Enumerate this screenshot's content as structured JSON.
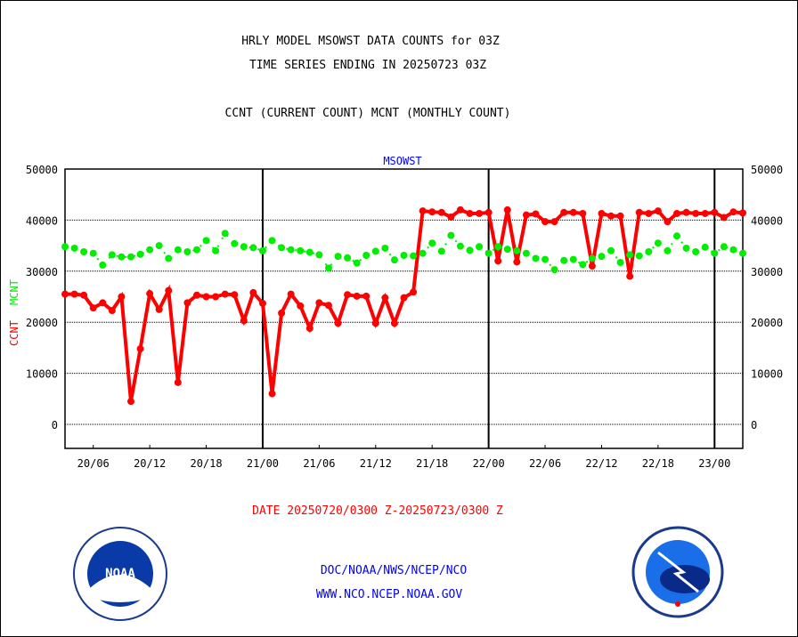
{
  "titles": {
    "line1": "HRLY MODEL MSOWST DATA COUNTS for 03Z",
    "line2": "TIME SERIES ENDING IN 20250723 03Z",
    "line3": "CCNT (CURRENT COUNT) MCNT (MONTHLY COUNT)"
  },
  "footer": {
    "date_range": "DATE 20250720/0300 Z-20250723/0300 Z",
    "org_path": "DOC/NOAA/NWS/NCEP/NCO",
    "website": "WWW.NCO.NCEP.NOAA.GOV"
  },
  "logos": {
    "left": "NOAA",
    "right": "NATIONAL WEATHER SERVICE"
  },
  "colors": {
    "ccnt": "#ff0000",
    "mcnt": "#00ee00",
    "title": "#0000ff"
  },
  "chart_data": {
    "type": "line",
    "title": "MSOWST",
    "xlabel": "DATE 20250720/0300 Z-20250723/0300 Z",
    "ylabel_left": "CCNT",
    "ylabel_right": "MCNT",
    "ylim": [
      -5000,
      50000
    ],
    "yticks": [
      0,
      10000,
      20000,
      30000,
      40000,
      50000
    ],
    "ytick_labels": [
      "0",
      "10000",
      "20000",
      "30000",
      "40000",
      "50000"
    ],
    "xtick_labels": [
      {
        "label": "20/06",
        "hour": 3
      },
      {
        "label": "20/12",
        "hour": 9
      },
      {
        "label": "20/18",
        "hour": 15
      },
      {
        "label": "21/00",
        "hour": 21
      },
      {
        "label": "21/06",
        "hour": 27
      },
      {
        "label": "21/12",
        "hour": 33
      },
      {
        "label": "21/18",
        "hour": 39
      },
      {
        "label": "22/00",
        "hour": 45
      },
      {
        "label": "22/06",
        "hour": 51
      },
      {
        "label": "22/12",
        "hour": 57
      },
      {
        "label": "22/18",
        "hour": 63
      },
      {
        "label": "23/00",
        "hour": 69
      }
    ],
    "day_boundaries_hour": [
      21,
      45,
      69
    ],
    "x_start": "20/03",
    "x_step_hours": 1,
    "series": [
      {
        "name": "CCNT",
        "color": "#ff0000",
        "values": [
          25500,
          25500,
          25300,
          22800,
          23800,
          22300,
          25000,
          4500,
          14800,
          25600,
          22500,
          26200,
          8200,
          23800,
          25300,
          25000,
          25000,
          25500,
          25400,
          20300,
          25800,
          23700,
          6000,
          21800,
          25500,
          23200,
          18800,
          23800,
          23300,
          19800,
          25400,
          25100,
          25100,
          19800,
          24800,
          19800,
          24800,
          25900,
          41800,
          41600,
          41500,
          40600,
          42000,
          41300,
          41300,
          41500,
          32000,
          42000,
          31800,
          41000,
          41200,
          39700,
          39700,
          41500,
          41500,
          41300,
          31000,
          41300,
          40800,
          40800,
          29000,
          41500,
          41300,
          41800,
          39700,
          41300,
          41500,
          41300,
          41300,
          41500,
          40500,
          41600,
          41400
        ]
      },
      {
        "name": "MCNT",
        "color": "#00ee00",
        "values": [
          34800,
          34500,
          33800,
          33500,
          31200,
          33200,
          32800,
          32800,
          33300,
          34200,
          35000,
          32500,
          34200,
          33800,
          34200,
          36000,
          34000,
          37400,
          35400,
          34800,
          34600,
          34000,
          36000,
          34600,
          34200,
          34000,
          33700,
          33200,
          30600,
          32900,
          32600,
          31600,
          33100,
          33900,
          34500,
          32200,
          33100,
          33000,
          33500,
          35500,
          33900,
          37000,
          34900,
          34100,
          34800,
          33500,
          34800,
          34300,
          34000,
          33500,
          32500,
          32300,
          30300,
          32100,
          32300,
          31300,
          32500,
          32900,
          34000,
          31700,
          33200,
          33000,
          33800,
          35500,
          34000,
          36900,
          34500,
          33800,
          34700,
          33500,
          34800,
          34200,
          33500
        ]
      }
    ]
  }
}
